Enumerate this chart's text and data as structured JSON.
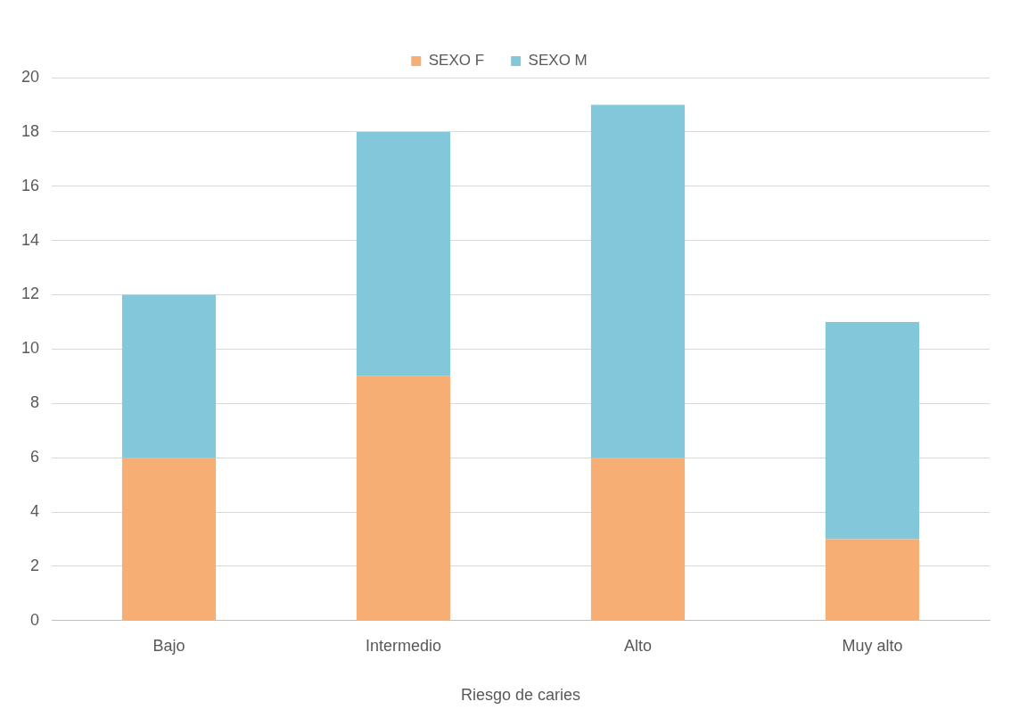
{
  "chart_data": {
    "type": "bar",
    "stacked": true,
    "categories": [
      "Bajo",
      "Intermedio",
      "Alto",
      "Muy alto"
    ],
    "series": [
      {
        "name": "SEXO F",
        "color": "#f7ae74",
        "values": [
          6,
          9,
          6,
          3
        ]
      },
      {
        "name": "SEXO M",
        "color": "#83c8da",
        "values": [
          6,
          9,
          13,
          8
        ]
      }
    ],
    "xlabel": "Riesgo de caries",
    "ylim": [
      0,
      20
    ],
    "yticks": [
      0,
      2,
      4,
      6,
      8,
      10,
      12,
      14,
      16,
      18,
      20
    ],
    "grid": "y",
    "legend": "top"
  }
}
